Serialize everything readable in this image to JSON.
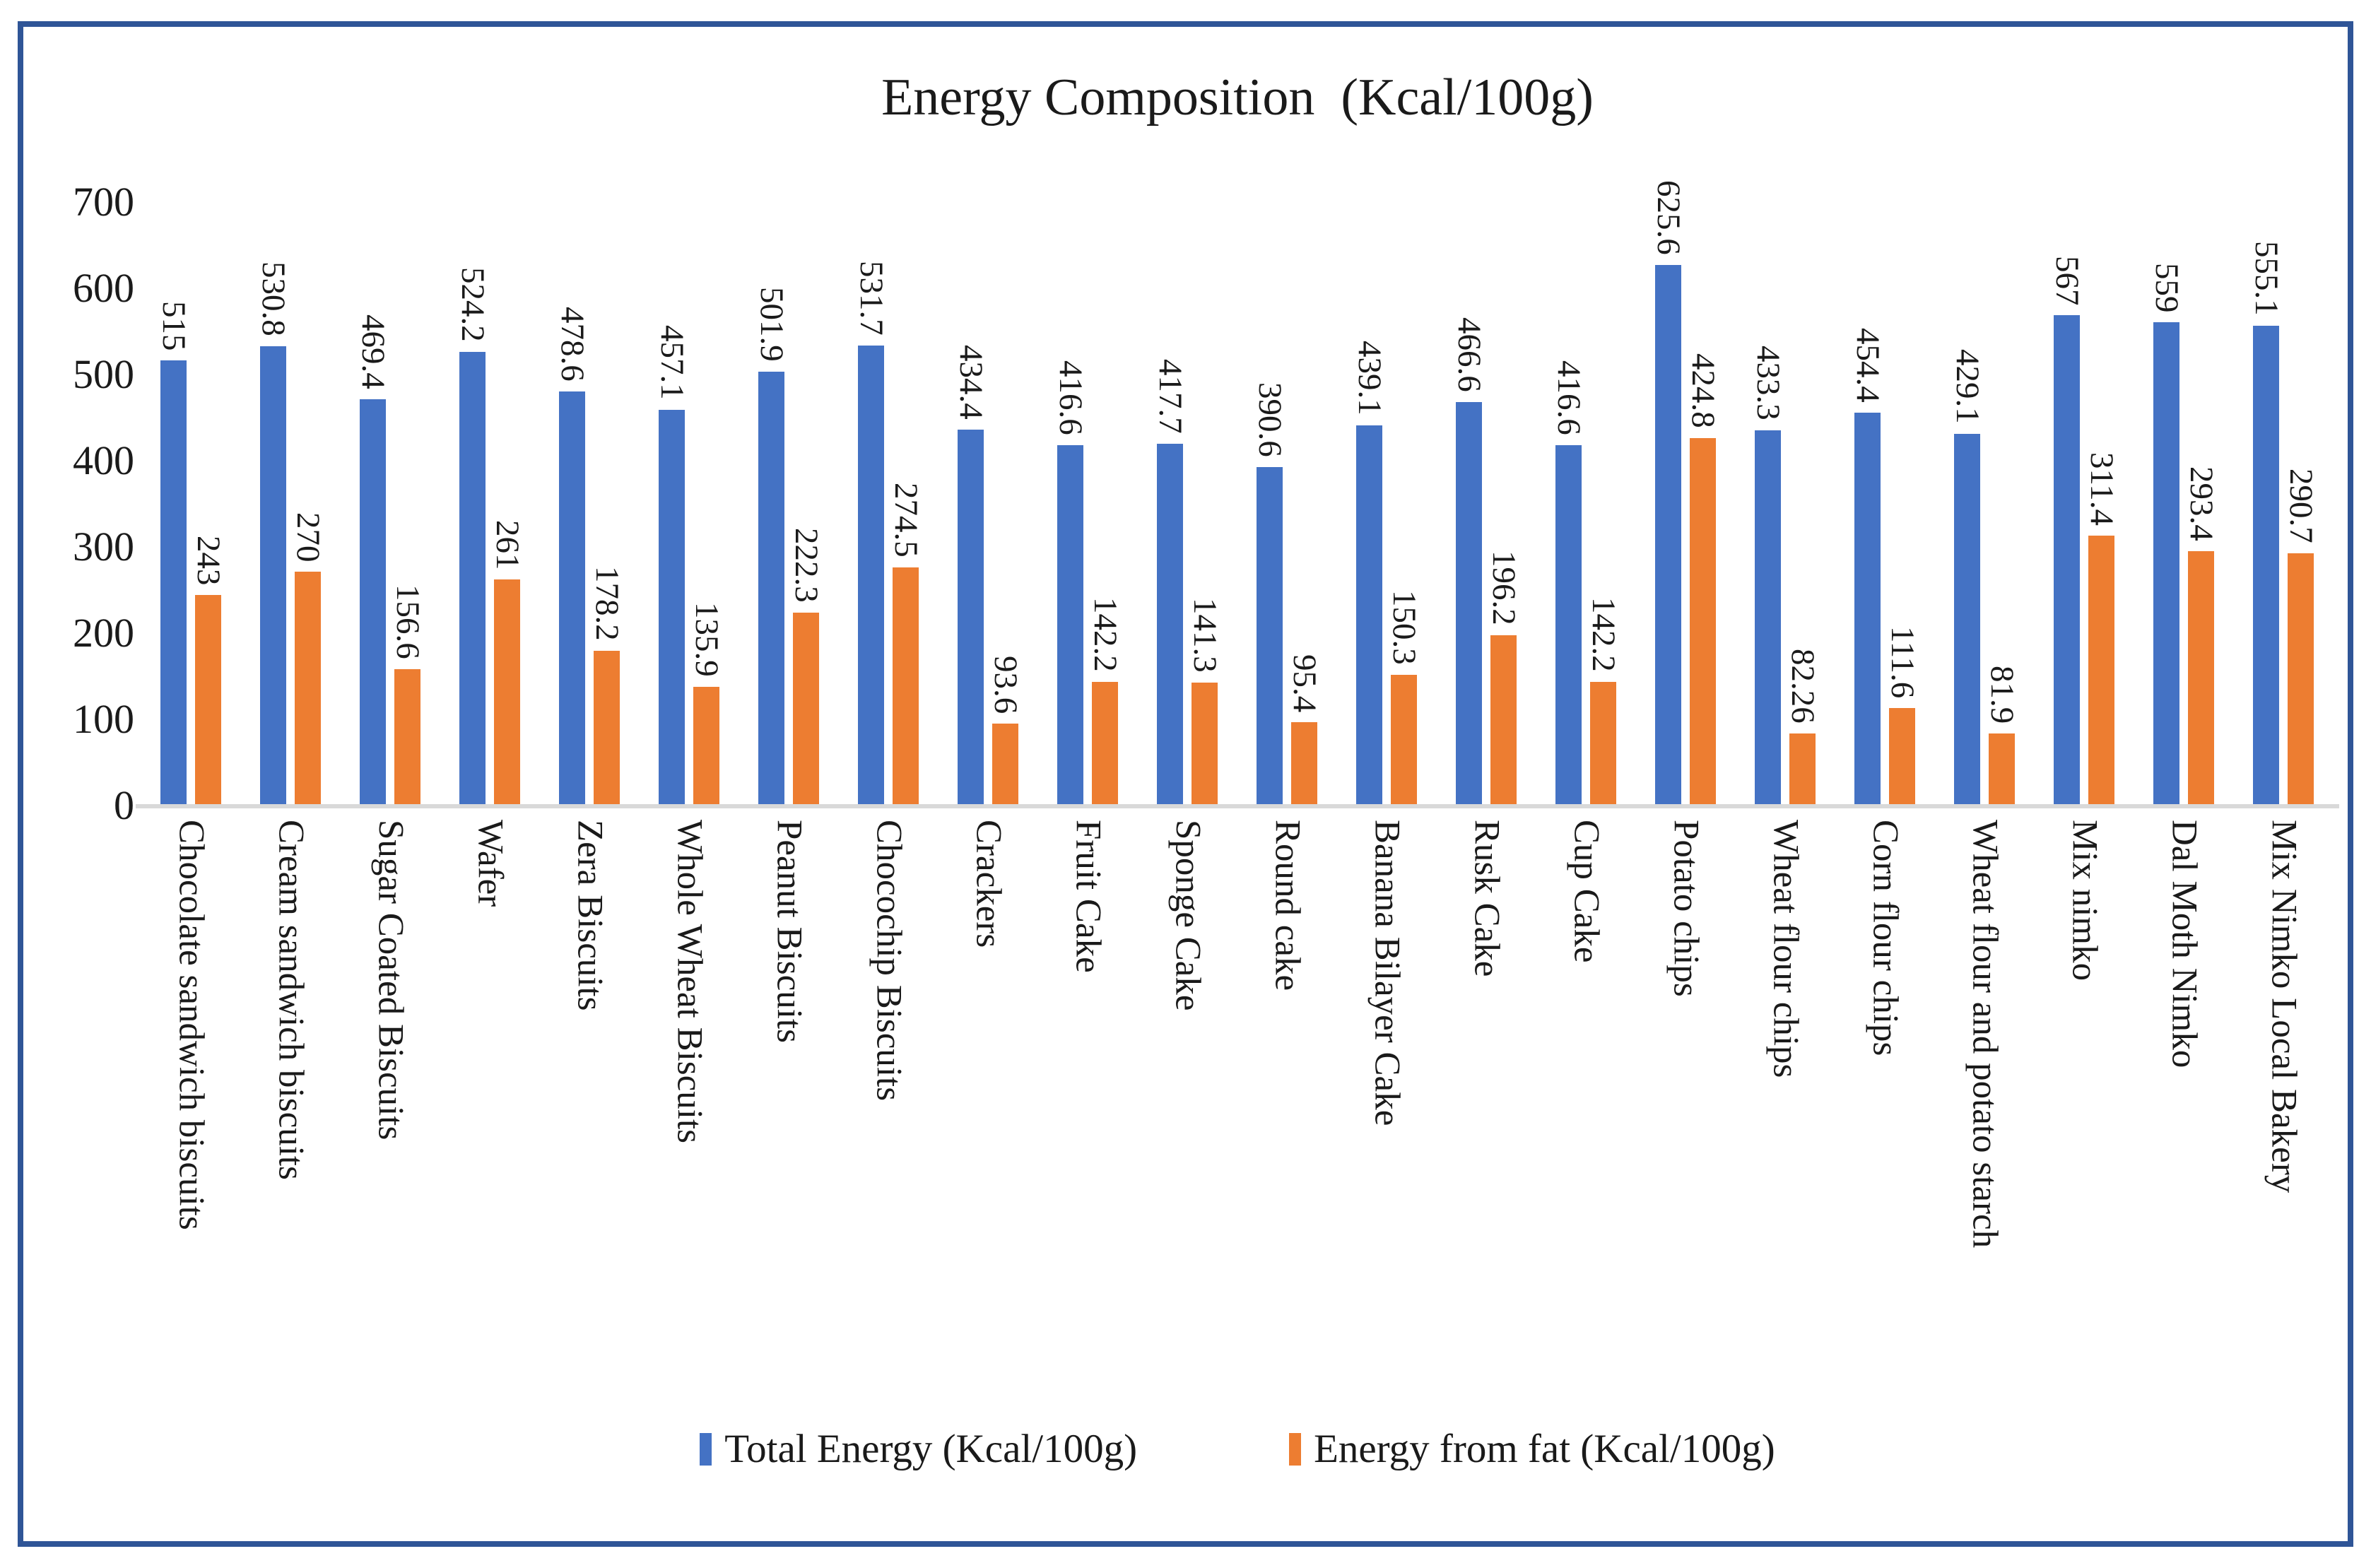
{
  "title": "Energy Composition  (Kcal/100g)",
  "colors": {
    "total_energy": "#4472C4",
    "energy_from_fat": "#ED7D31",
    "frame_border": "#2F5597",
    "axis_baseline": "#D9D9D9",
    "text": "#1a1a1a"
  },
  "legend": {
    "position": "bottom",
    "items": [
      {
        "label": "Total Energy (Kcal/100g)",
        "color": "#4472C4"
      },
      {
        "label": "Energy from fat (Kcal/100g)",
        "color": "#ED7D31"
      }
    ]
  },
  "y_axis": {
    "min": 0,
    "max": 700,
    "tick_step": 100,
    "tick_labels": [
      "0",
      "100",
      "200",
      "300",
      "400",
      "500",
      "600",
      "700"
    ]
  },
  "chart_data": {
    "type": "bar",
    "title": "Energy Composition  (Kcal/100g)",
    "xlabel": "",
    "ylabel": "",
    "ylim": [
      0,
      700
    ],
    "grid": false,
    "legend_position": "bottom",
    "categories": [
      "Chocolate sandwich biscuits",
      "Cream sandwich biscuits",
      "Sugar Coated Biscuits",
      "Wafer",
      "Zera Biscuits",
      "Whole Wheat Biscuits",
      "Peanut Biscuits",
      "Chocochip Biscuits",
      "Crackers",
      "Fruit Cake",
      "Sponge Cake",
      "Round cake",
      "Banana Bilayer Cake",
      "Rusk Cake",
      "Cup Cake",
      "Potato chips",
      "Wheat flour chips",
      "Corn flour chips",
      "Wheat flour and potato starch",
      "Mix nimko",
      "Dal Moth Nimko",
      "Mix Nimko Local Bakery"
    ],
    "series": [
      {
        "name": "Total Energy (Kcal/100g)",
        "color": "#4472C4",
        "values": [
          515,
          530.8,
          469.4,
          524.2,
          478.6,
          457.1,
          501.9,
          531.7,
          434.4,
          416.6,
          417.7,
          390.6,
          439.1,
          466.6,
          416.6,
          625.6,
          433.3,
          454.4,
          429.1,
          567,
          559,
          555.1
        ],
        "labels": [
          "515",
          "530.8",
          "469.4",
          "524.2",
          "478.6",
          "457.1",
          "501.9",
          "531.7",
          "434.4",
          "416.6",
          "417.7",
          "390.6",
          "439.1",
          "466.6",
          "416.6",
          "625.6",
          "433.3",
          "454.4",
          "429.1",
          "567",
          "559",
          "555.1"
        ]
      },
      {
        "name": "Energy from fat (Kcal/100g)",
        "color": "#ED7D31",
        "values": [
          243,
          270,
          156.6,
          261,
          178.2,
          135.9,
          222.3,
          274.5,
          93.6,
          142.2,
          141.3,
          95.4,
          150.3,
          196.2,
          142.2,
          424.8,
          82.26,
          111.6,
          81.9,
          311.4,
          293.4,
          290.7
        ],
        "labels": [
          "243",
          "270",
          "156.6",
          "261",
          "178.2",
          "135.9",
          "222.3",
          "274.5",
          "93.6",
          "142.2",
          "141.3",
          "95.4",
          "150.3",
          "196.2",
          "142.2",
          "424.8",
          "82.26",
          "111.6",
          "81.9",
          "311.4",
          "293.4",
          "290.7"
        ]
      }
    ]
  }
}
